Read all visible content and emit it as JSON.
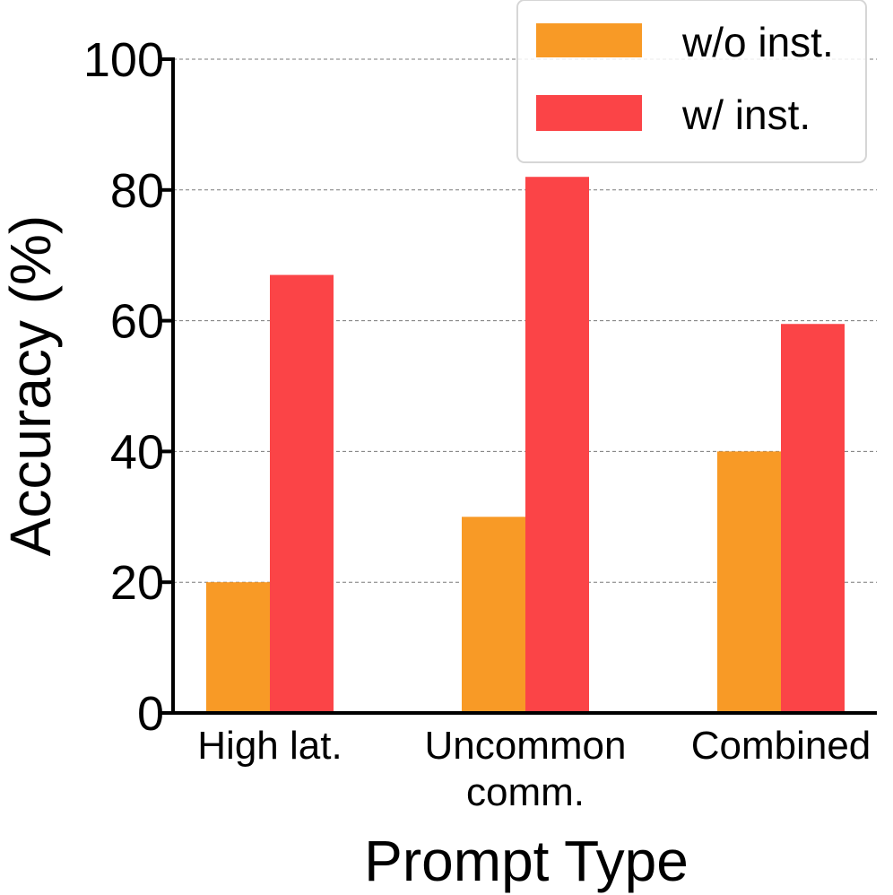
{
  "chart_data": {
    "type": "bar",
    "title": "",
    "xlabel": "Prompt Type",
    "ylabel": "Accuracy (%)",
    "ylim": [
      0,
      100
    ],
    "yticks": [
      "0",
      "20",
      "40",
      "60",
      "80",
      "100"
    ],
    "categories": [
      {
        "lines": [
          "High lat."
        ]
      },
      {
        "lines": [
          "Uncommon",
          "comm."
        ]
      },
      {
        "lines": [
          "Combined"
        ]
      }
    ],
    "series": [
      {
        "name": "w/o inst.",
        "color": "#F89A26",
        "values": [
          20,
          30,
          40
        ]
      },
      {
        "name": "w/ inst.",
        "color": "#FB4447",
        "values": [
          67,
          82,
          59.5
        ]
      }
    ],
    "grid": true,
    "legend": "top-right"
  }
}
